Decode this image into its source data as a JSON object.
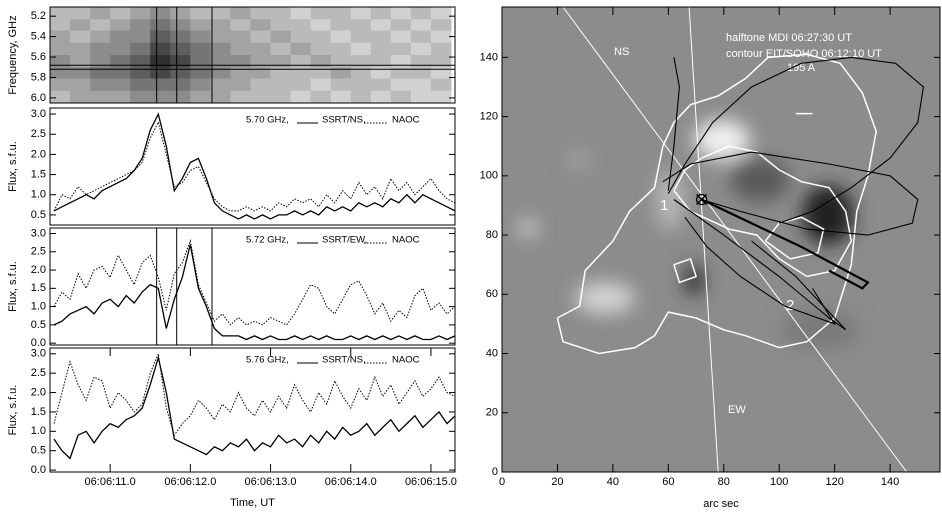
{
  "chart_data": [
    {
      "type": "heatmap",
      "ylabel": "Frequency, GHz",
      "y_inverted": true,
      "xlim": [
        10.25,
        15.3
      ],
      "ylim": [
        5.11,
        6.05
      ],
      "yticks": [
        5.2,
        5.4,
        5.6,
        5.8,
        {
          "value": 6,
          "label": "6.0"
        }
      ],
      "x": [
        10.375,
        10.625,
        10.875,
        11.125,
        11.375,
        11.625,
        11.875,
        12.125,
        12.375,
        12.625,
        12.875,
        13.125,
        13.375,
        13.625,
        13.875,
        14.125,
        14.375,
        14.625,
        14.875,
        15.125
      ],
      "y": [
        5.17,
        5.29,
        5.4,
        5.52,
        5.64,
        5.76,
        5.87,
        5.99
      ],
      "z": [
        [
          0.3,
          0.3,
          0.4,
          0.3,
          0.4,
          0.5,
          0.4,
          0.3,
          0.3,
          0.4,
          0.3,
          0.3,
          0.2,
          0.3,
          0.3,
          0.2,
          0.3,
          0.2,
          0.3,
          0.2
        ],
        [
          0.3,
          0.4,
          0.3,
          0.4,
          0.5,
          0.6,
          0.5,
          0.4,
          0.4,
          0.3,
          0.4,
          0.3,
          0.3,
          0.2,
          0.3,
          0.3,
          0.2,
          0.3,
          0.2,
          0.3
        ],
        [
          0.4,
          0.3,
          0.4,
          0.5,
          0.5,
          0.7,
          0.6,
          0.5,
          0.4,
          0.4,
          0.3,
          0.4,
          0.3,
          0.3,
          0.2,
          0.3,
          0.3,
          0.2,
          0.3,
          0.2
        ],
        [
          0.4,
          0.4,
          0.5,
          0.5,
          0.6,
          0.8,
          0.7,
          0.6,
          0.5,
          0.4,
          0.4,
          0.3,
          0.4,
          0.3,
          0.3,
          0.2,
          0.3,
          0.3,
          0.2,
          0.3
        ],
        [
          0.5,
          0.4,
          0.5,
          0.6,
          0.7,
          0.9,
          0.8,
          0.6,
          0.5,
          0.5,
          0.4,
          0.4,
          0.3,
          0.4,
          0.3,
          0.3,
          0.3,
          0.2,
          0.3,
          0.3
        ],
        [
          0.5,
          0.5,
          0.6,
          0.6,
          0.7,
          0.8,
          0.7,
          0.6,
          0.5,
          0.4,
          0.4,
          0.3,
          0.3,
          0.3,
          0.4,
          0.3,
          0.2,
          0.3,
          0.3,
          0.2
        ],
        [
          0.4,
          0.4,
          0.5,
          0.5,
          0.6,
          0.6,
          0.6,
          0.5,
          0.4,
          0.4,
          0.3,
          0.3,
          0.3,
          0.2,
          0.3,
          0.3,
          0.3,
          0.2,
          0.2,
          0.3
        ],
        [
          0.3,
          0.4,
          0.4,
          0.4,
          0.5,
          0.5,
          0.5,
          0.4,
          0.4,
          0.3,
          0.3,
          0.3,
          0.2,
          0.3,
          0.2,
          0.3,
          0.2,
          0.3,
          0.2,
          0.2
        ]
      ],
      "vlines": [
        11.58,
        11.83,
        12.27
      ],
      "hlines": [
        5.68,
        5.72
      ]
    },
    {
      "type": "line",
      "label": "5.70 GHz,",
      "ylabel": "Flux, s.f.u.",
      "xlim": [
        10.25,
        15.3
      ],
      "ylim": [
        0.25,
        3.15
      ],
      "yticks": [
        0.5,
        {
          "value": 1,
          "label": "1.0"
        },
        1.5,
        {
          "value": 2,
          "label": "2.0"
        },
        2.5,
        {
          "value": 3,
          "label": "3.0"
        }
      ],
      "x": [
        10.3,
        10.4,
        10.5,
        10.6,
        10.7,
        10.8,
        10.9,
        11.0,
        11.1,
        11.2,
        11.3,
        11.4,
        11.5,
        11.6,
        11.7,
        11.8,
        11.9,
        12.0,
        12.1,
        12.2,
        12.3,
        12.4,
        12.5,
        12.6,
        12.7,
        12.8,
        12.9,
        13.0,
        13.1,
        13.2,
        13.3,
        13.4,
        13.5,
        13.6,
        13.7,
        13.8,
        13.9,
        14.0,
        14.1,
        14.2,
        14.3,
        14.4,
        14.5,
        14.6,
        14.7,
        14.8,
        14.9,
        15.0,
        15.1,
        15.2,
        15.3
      ],
      "series": [
        {
          "name": "SSRT/NS,",
          "color": "#000000",
          "dash": "solid",
          "values": [
            0.6,
            0.7,
            0.8,
            0.9,
            1.0,
            0.9,
            1.1,
            1.2,
            1.3,
            1.4,
            1.6,
            1.9,
            2.6,
            3.0,
            2.2,
            1.1,
            1.4,
            1.8,
            1.9,
            1.4,
            0.8,
            0.6,
            0.5,
            0.4,
            0.5,
            0.4,
            0.5,
            0.4,
            0.5,
            0.5,
            0.6,
            0.5,
            0.6,
            0.5,
            0.7,
            0.6,
            0.7,
            0.6,
            0.8,
            0.7,
            0.8,
            0.7,
            0.9,
            0.8,
            1.0,
            0.8,
            1.0,
            0.9,
            0.8,
            0.7,
            0.6
          ]
        },
        {
          "name": "NAOC",
          "color": "#000000",
          "dash": "dotted",
          "values": [
            0.6,
            1.0,
            0.9,
            1.2,
            1.0,
            1.1,
            1.2,
            1.3,
            1.4,
            1.5,
            1.6,
            1.8,
            2.4,
            2.8,
            2.0,
            1.2,
            1.3,
            1.6,
            1.7,
            1.3,
            0.9,
            0.7,
            0.6,
            0.6,
            0.7,
            0.6,
            0.7,
            0.6,
            0.8,
            0.7,
            0.9,
            0.8,
            0.9,
            0.7,
            1.0,
            0.8,
            1.1,
            0.9,
            1.3,
            1.0,
            1.2,
            0.9,
            1.4,
            1.1,
            1.3,
            1.0,
            1.2,
            1.4,
            1.1,
            0.9,
            0.8
          ]
        }
      ]
    },
    {
      "type": "line",
      "label": "5.72 GHz,",
      "ylabel": "Flux, s.f.u.",
      "xlim": [
        10.25,
        15.3
      ],
      "ylim": [
        -0.05,
        3.15
      ],
      "yticks": [
        {
          "value": 0,
          "label": "0.0"
        },
        0.5,
        {
          "value": 1,
          "label": "1.0"
        },
        1.5,
        {
          "value": 2,
          "label": "2.0"
        },
        2.5,
        {
          "value": 3,
          "label": "3.0"
        }
      ],
      "x": [
        10.3,
        10.4,
        10.5,
        10.6,
        10.7,
        10.8,
        10.9,
        11.0,
        11.1,
        11.2,
        11.3,
        11.4,
        11.5,
        11.6,
        11.7,
        11.8,
        11.9,
        12.0,
        12.1,
        12.2,
        12.3,
        12.4,
        12.5,
        12.6,
        12.7,
        12.8,
        12.9,
        13.0,
        13.1,
        13.2,
        13.3,
        13.4,
        13.5,
        13.6,
        13.7,
        13.8,
        13.9,
        14.0,
        14.1,
        14.2,
        14.3,
        14.4,
        14.5,
        14.6,
        14.7,
        14.8,
        14.9,
        15.0,
        15.1,
        15.2,
        15.3
      ],
      "vlines": [
        11.58,
        11.83,
        12.27
      ],
      "series": [
        {
          "name": "SSRT/EW,",
          "color": "#000000",
          "dash": "solid",
          "values": [
            0.5,
            0.6,
            0.8,
            0.9,
            1.0,
            0.8,
            1.1,
            1.2,
            1.0,
            1.3,
            1.1,
            1.4,
            1.6,
            1.5,
            0.4,
            1.2,
            1.8,
            2.7,
            1.5,
            1.0,
            0.4,
            0.2,
            0.2,
            0.2,
            0.1,
            0.2,
            0.1,
            0.2,
            0.1,
            0.1,
            0.2,
            0.1,
            0.2,
            0.1,
            0.2,
            0.1,
            0.1,
            0.2,
            0.1,
            0.2,
            0.1,
            0.2,
            0.1,
            0.2,
            0.1,
            0.2,
            0.1,
            0.1,
            0.2,
            0.1,
            0.2
          ]
        },
        {
          "name": "NAOC",
          "color": "#000000",
          "dash": "dotted",
          "values": [
            1.0,
            1.4,
            1.2,
            1.9,
            1.5,
            2.0,
            2.1,
            1.8,
            2.4,
            2.0,
            1.6,
            2.2,
            2.4,
            1.8,
            0.9,
            1.9,
            2.2,
            2.8,
            1.6,
            1.1,
            0.6,
            0.8,
            0.5,
            0.7,
            0.5,
            0.6,
            0.5,
            0.7,
            0.6,
            0.5,
            0.8,
            1.2,
            1.6,
            1.5,
            1.0,
            0.8,
            1.2,
            1.6,
            1.7,
            1.3,
            0.8,
            1.1,
            0.6,
            0.9,
            0.7,
            1.3,
            1.5,
            0.9,
            1.1,
            0.8,
            1.0
          ]
        }
      ]
    },
    {
      "type": "line",
      "label": "5.76 GHz,",
      "ylabel": "Flux, s.f.u.",
      "xlabel": "Time, UT",
      "xlim": [
        10.25,
        15.3
      ],
      "ylim": [
        -0.05,
        3.15
      ],
      "yticks": [
        {
          "value": 0,
          "label": "0.0"
        },
        0.5,
        {
          "value": 1,
          "label": "1.0"
        },
        1.5,
        {
          "value": 2,
          "label": "2.0"
        },
        2.5,
        {
          "value": 3,
          "label": "3.0"
        }
      ],
      "xticks": [
        {
          "value": 11,
          "label": "06:06:11.0"
        },
        {
          "value": 12,
          "label": "06:06:12.0"
        },
        {
          "value": 13,
          "label": "06:06:13.0"
        },
        {
          "value": 14,
          "label": "06:06:14.0"
        },
        {
          "value": 15,
          "label": "06:06:15.0"
        }
      ],
      "x": [
        10.3,
        10.4,
        10.5,
        10.6,
        10.7,
        10.8,
        10.9,
        11.0,
        11.1,
        11.2,
        11.3,
        11.4,
        11.5,
        11.6,
        11.7,
        11.8,
        11.9,
        12.0,
        12.1,
        12.2,
        12.3,
        12.4,
        12.5,
        12.6,
        12.7,
        12.8,
        12.9,
        13.0,
        13.1,
        13.2,
        13.3,
        13.4,
        13.5,
        13.6,
        13.7,
        13.8,
        13.9,
        14.0,
        14.1,
        14.2,
        14.3,
        14.4,
        14.5,
        14.6,
        14.7,
        14.8,
        14.9,
        15.0,
        15.1,
        15.2,
        15.3
      ],
      "series": [
        {
          "name": "SSRT/NS,",
          "color": "#000000",
          "dash": "solid",
          "values": [
            0.8,
            0.5,
            0.3,
            0.9,
            1.0,
            0.7,
            1.0,
            1.2,
            1.1,
            1.3,
            1.4,
            1.6,
            2.2,
            2.9,
            2.0,
            0.8,
            0.7,
            0.6,
            0.5,
            0.4,
            0.6,
            0.5,
            0.7,
            0.6,
            0.8,
            0.5,
            0.7,
            0.6,
            0.9,
            0.7,
            0.8,
            0.6,
            0.9,
            0.7,
            1.0,
            0.8,
            1.1,
            0.9,
            1.0,
            1.2,
            0.9,
            1.1,
            1.3,
            1.0,
            1.2,
            1.4,
            1.1,
            1.3,
            1.5,
            1.2,
            1.4
          ]
        },
        {
          "name": "NAOC",
          "color": "#000000",
          "dash": "dotted",
          "values": [
            1.2,
            2.0,
            2.8,
            2.2,
            1.8,
            2.4,
            2.3,
            1.6,
            2.0,
            1.8,
            1.5,
            1.7,
            2.5,
            3.0,
            1.6,
            0.9,
            1.2,
            1.4,
            1.8,
            1.6,
            1.3,
            1.7,
            1.5,
            2.0,
            1.6,
            1.4,
            1.8,
            1.5,
            1.9,
            1.6,
            2.2,
            1.8,
            1.5,
            2.0,
            1.7,
            2.3,
            1.9,
            1.6,
            2.1,
            1.8,
            2.4,
            1.9,
            2.2,
            1.7,
            2.0,
            2.3,
            1.9,
            2.1,
            2.4,
            2.0,
            1.9
          ]
        }
      ]
    },
    {
      "type": "map",
      "xlabel": "arc sec",
      "xlim": [
        0,
        158
      ],
      "ylim": [
        0,
        157
      ],
      "xticks": [
        0,
        20,
        40,
        60,
        80,
        100,
        120,
        140
      ],
      "yticks": [
        0,
        20,
        40,
        60,
        80,
        100,
        120,
        140
      ],
      "annotations": [
        "halftone MDI  06:27:30 UT",
        "contour EIT/SOHO  06:12:10 UT",
        "195 A"
      ],
      "labels": [
        "NS",
        "EW",
        "1",
        "2"
      ],
      "chords": [
        {
          "x": [
            22,
            146
          ],
          "y": [
            157,
            0
          ]
        },
        {
          "x": [
            67.5,
            78
          ],
          "y": [
            157,
            0
          ]
        }
      ],
      "contours": [
        {
          "x": [
            20,
            28,
            30,
            40,
            46,
            55,
            58,
            62,
            68,
            78,
            88,
            96,
            110,
            122,
            130,
            135,
            132,
            128,
            126,
            120,
            110,
            100,
            88,
            80,
            70,
            60,
            55,
            48,
            35,
            22,
            20
          ],
          "y": [
            52,
            56,
            68,
            78,
            88,
            96,
            110,
            118,
            124,
            127,
            133,
            140,
            141,
            138,
            128,
            115,
            100,
            88,
            70,
            52,
            44,
            42,
            46,
            48,
            52,
            54,
            46,
            42,
            40,
            44,
            52
          ]
        },
        {
          "x": [
            62,
            66,
            72,
            82,
            92,
            100,
            108,
            118,
            124,
            126,
            120,
            110,
            100,
            92,
            82,
            75,
            68,
            62
          ],
          "y": [
            95,
            102,
            106,
            110,
            108,
            102,
            98,
            96,
            88,
            78,
            68,
            66,
            72,
            80,
            82,
            85,
            88,
            95
          ]
        },
        {
          "x": [
            95,
            100,
            108,
            116,
            114,
            104,
            95
          ],
          "y": [
            78,
            84,
            86,
            82,
            74,
            72,
            78
          ]
        },
        {
          "x": [
            106,
            112
          ],
          "y": [
            121,
            121
          ]
        },
        {
          "x": [
            62,
            68,
            70,
            64,
            62
          ],
          "y": [
            70,
            72,
            66,
            64,
            70
          ]
        }
      ],
      "loops": [
        {
          "x": [
            60,
            66,
            76,
            90,
            108,
            126,
            142,
            152,
            150,
            140,
            126,
            112,
            100
          ],
          "y": [
            94,
            104,
            118,
            130,
            138,
            140,
            138,
            130,
            118,
            106,
            96,
            88,
            84
          ]
        },
        {
          "x": [
            58,
            68,
            90,
            118,
            140,
            150,
            148,
            132,
            110,
            86,
            72
          ],
          "y": [
            98,
            104,
            108,
            104,
            100,
            92,
            84,
            80,
            82,
            88,
            92
          ]
        },
        {
          "x": [
            72,
            90,
            108,
            124,
            132,
            130,
            118
          ],
          "y": [
            92,
            84,
            76,
            68,
            64,
            62,
            68
          ],
          "width": 2.2
        },
        {
          "x": [
            62,
            80,
            100,
            118,
            124,
            118,
            106,
            90
          ],
          "y": [
            92,
            80,
            66,
            52,
            48,
            54,
            66,
            78
          ]
        },
        {
          "x": [
            66,
            74,
            86,
            102,
            120,
            112
          ],
          "y": [
            86,
            76,
            66,
            56,
            50,
            62
          ]
        },
        {
          "x": [
            60,
            62,
            64,
            62
          ],
          "y": [
            95,
            110,
            130,
            140
          ]
        }
      ],
      "marker": {
        "x": 72,
        "y": 92
      }
    }
  ]
}
